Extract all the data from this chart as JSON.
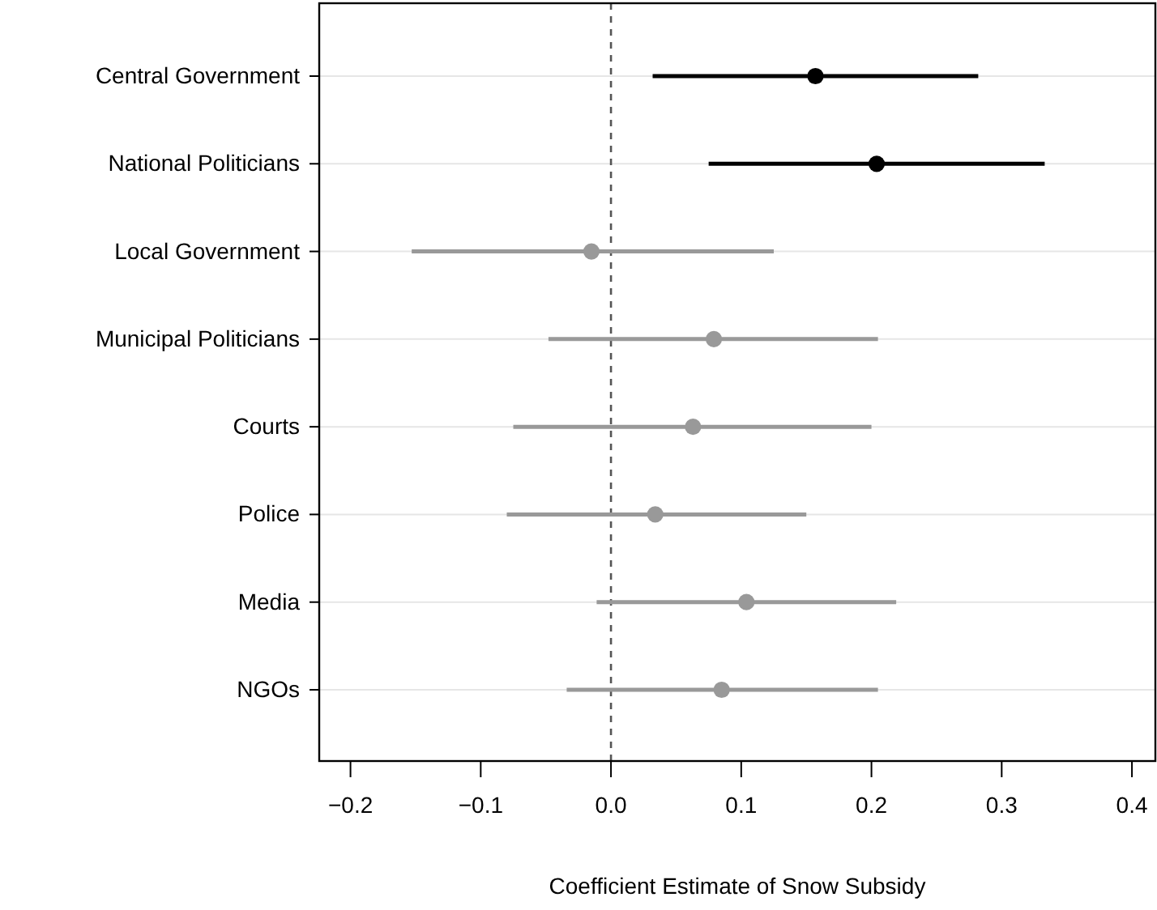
{
  "chart_data": {
    "type": "scatter",
    "orientation": "horizontal",
    "xlabel": "Coefficient Estimate of Snow Subsidy",
    "categories": [
      "Central Government",
      "National Politicians",
      "Local Government",
      "Municipal Politicians",
      "Courts",
      "Police",
      "Media",
      "NGOs"
    ],
    "series": [
      {
        "color": "#000000",
        "values": [
          0.157,
          0.204,
          null,
          null,
          null,
          null,
          null,
          null
        ],
        "errors": [
          [
            0.032,
            0.282
          ],
          [
            0.075,
            0.333
          ],
          null,
          null,
          null,
          null,
          null,
          null
        ]
      },
      {
        "color": "#999999",
        "values": [
          null,
          null,
          -0.015,
          0.079,
          0.063,
          0.034,
          0.104,
          0.085
        ],
        "errors": [
          null,
          null,
          [
            -0.153,
            0.125
          ],
          [
            -0.048,
            0.205
          ],
          [
            -0.075,
            0.2
          ],
          [
            -0.08,
            0.15
          ],
          [
            -0.011,
            0.219
          ],
          [
            -0.034,
            0.205
          ]
        ]
      }
    ],
    "xlim": [
      -0.224,
      0.418
    ],
    "xticks": [
      {
        "value": -0.2,
        "label": "−0.2"
      },
      {
        "value": -0.1,
        "label": "−0.1"
      },
      {
        "value": 0,
        "label": "0.0"
      },
      {
        "value": 0.1,
        "label": "0.1"
      },
      {
        "value": 0.2,
        "label": "0.2"
      },
      {
        "value": 0.3,
        "label": "0.3"
      },
      {
        "value": 0.4,
        "label": "0.4"
      }
    ],
    "grid": "y",
    "marker": "circle",
    "ref_lines": [
      {
        "axis": "x",
        "value": 0,
        "line_style": "dashed",
        "color": "#555555"
      }
    ]
  }
}
